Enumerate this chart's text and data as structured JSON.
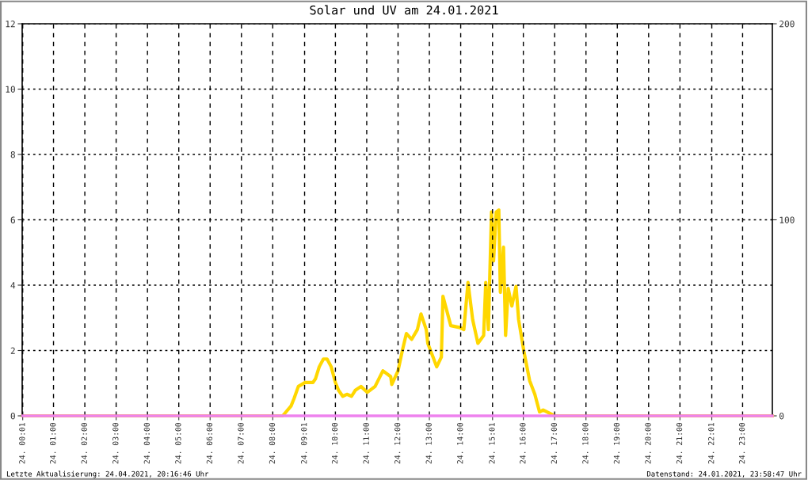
{
  "chart_data": {
    "type": "line",
    "title": "Solar und UV am 24.01.2021",
    "xlim": [
      "2021-01-24T00:00",
      "2021-01-24T23:57"
    ],
    "xticks": [
      {
        "value": "2021-01-24T00:01",
        "label": "24. 00:01"
      },
      {
        "value": "2021-01-24T01:00",
        "label": "24. 01:00"
      },
      {
        "value": "2021-01-24T02:00",
        "label": "24. 02:00"
      },
      {
        "value": "2021-01-24T03:00",
        "label": "24. 03:00"
      },
      {
        "value": "2021-01-24T04:00",
        "label": "24. 04:00"
      },
      {
        "value": "2021-01-24T05:00",
        "label": "24. 05:00"
      },
      {
        "value": "2021-01-24T06:00",
        "label": "24. 06:00"
      },
      {
        "value": "2021-01-24T07:00",
        "label": "24. 07:00"
      },
      {
        "value": "2021-01-24T08:00",
        "label": "24. 08:00"
      },
      {
        "value": "2021-01-24T09:01",
        "label": "24. 09:01"
      },
      {
        "value": "2021-01-24T10:00",
        "label": "24. 10:00"
      },
      {
        "value": "2021-01-24T11:00",
        "label": "24. 11:00"
      },
      {
        "value": "2021-01-24T12:00",
        "label": "24. 12:00"
      },
      {
        "value": "2021-01-24T13:00",
        "label": "24. 13:00"
      },
      {
        "value": "2021-01-24T14:00",
        "label": "24. 14:00"
      },
      {
        "value": "2021-01-24T15:01",
        "label": "24. 15:01"
      },
      {
        "value": "2021-01-24T16:00",
        "label": "24. 16:00"
      },
      {
        "value": "2021-01-24T17:00",
        "label": "24. 17:00"
      },
      {
        "value": "2021-01-24T18:00",
        "label": "24. 18:00"
      },
      {
        "value": "2021-01-24T19:00",
        "label": "24. 19:00"
      },
      {
        "value": "2021-01-24T20:00",
        "label": "24. 20:00"
      },
      {
        "value": "2021-01-24T21:00",
        "label": "24. 21:00"
      },
      {
        "value": "2021-01-24T22:01",
        "label": "24. 22:01"
      },
      {
        "value": "2021-01-24T23:00",
        "label": "24. 23:00"
      }
    ],
    "ylim": [
      0,
      12
    ],
    "yticks": [
      0,
      2,
      4,
      6,
      8,
      10,
      12
    ],
    "y2lim": [
      0,
      200
    ],
    "y2ticks": [
      0,
      100,
      200
    ],
    "grid": true,
    "legend": false,
    "marker": "none",
    "line_style": "solid",
    "series": [
      {
        "color": "#ffd700",
        "axis": "y2",
        "x": [
          "2021-01-24T00:01",
          "2021-01-24T08:14",
          "2021-01-24T08:19",
          "2021-01-24T08:35",
          "2021-01-24T08:41",
          "2021-01-24T08:49",
          "2021-01-24T09:02",
          "2021-01-24T09:17",
          "2021-01-24T09:22",
          "2021-01-24T09:29",
          "2021-01-24T09:37",
          "2021-01-24T09:44",
          "2021-01-24T09:52",
          "2021-01-24T10:00",
          "2021-01-24T10:06",
          "2021-01-24T10:14",
          "2021-01-24T10:22",
          "2021-01-24T10:31",
          "2021-01-24T10:38",
          "2021-01-24T10:49",
          "2021-01-24T11:01",
          "2021-01-24T11:16",
          "2021-01-24T11:31",
          "2021-01-24T11:46",
          "2021-01-24T11:48",
          "2021-01-24T12:00",
          "2021-01-24T12:08",
          "2021-01-24T12:16",
          "2021-01-24T12:26",
          "2021-01-24T12:37",
          "2021-01-24T12:44",
          "2021-01-24T12:54",
          "2021-01-24T12:57",
          "2021-01-24T13:07",
          "2021-01-24T13:14",
          "2021-01-24T13:23",
          "2021-01-24T13:26",
          "2021-01-24T13:41",
          "2021-01-24T13:59",
          "2021-01-24T14:06",
          "2021-01-24T14:14",
          "2021-01-24T14:23",
          "2021-01-24T14:33",
          "2021-01-24T14:44",
          "2021-01-24T14:48",
          "2021-01-24T14:53",
          "2021-01-24T14:59",
          "2021-01-24T15:03",
          "2021-01-24T15:08",
          "2021-01-24T15:13",
          "2021-01-24T15:16",
          "2021-01-24T15:22",
          "2021-01-24T15:26",
          "2021-01-24T15:31",
          "2021-01-24T15:38",
          "2021-01-24T15:46",
          "2021-01-24T15:51",
          "2021-01-24T16:01",
          "2021-01-24T16:12",
          "2021-01-24T16:22",
          "2021-01-24T16:31",
          "2021-01-24T16:38",
          "2021-01-24T16:53",
          "2021-01-24T17:00",
          "2021-01-24T23:57"
        ],
        "values": [
          0,
          0,
          0,
          5,
          9,
          15,
          17,
          17,
          19,
          25,
          29,
          29,
          25,
          17,
          13,
          10,
          11,
          10,
          13,
          15,
          12,
          15,
          23,
          20,
          16,
          23,
          33,
          42,
          39,
          44,
          52,
          44,
          37,
          30,
          25,
          30,
          61,
          46,
          45,
          44,
          68,
          49,
          37,
          41,
          68,
          44,
          104,
          79,
          104,
          105,
          63,
          86,
          41,
          65,
          56,
          66,
          49,
          33,
          18,
          11,
          2,
          3,
          1,
          0,
          0
        ]
      },
      {
        "color": "#ee82ee",
        "axis": "y",
        "x": [
          "2021-01-24T00:01",
          "2021-01-24T23:57"
        ],
        "values": [
          0,
          0
        ]
      }
    ],
    "annotations": [
      "Letzte Aktualisierung: 24.04.2021, 20:16:46 Uhr",
      "Datenstand: 24.01.2021, 23:58:47 Uhr"
    ]
  }
}
